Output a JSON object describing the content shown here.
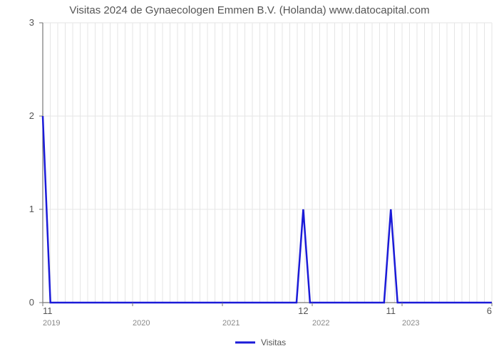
{
  "chart": {
    "type": "line",
    "title": "Visitas 2024 de Gynaecologen Emmen B.V. (Holanda) www.datocapital.com",
    "title_fontsize": 15,
    "title_color": "#555555",
    "background_color": "#ffffff",
    "grid_color": "#e5e5e5",
    "axis_color": "#777777",
    "line_color": "#1b1bd8",
    "line_width": 2.5,
    "y": {
      "min": 0,
      "max": 3,
      "tick_positions": [
        0,
        1,
        2,
        3
      ],
      "tick_labels": [
        "0",
        "1",
        "2",
        "3"
      ]
    },
    "x": {
      "year_labels": [
        {
          "t": 0.0,
          "label": "2019"
        },
        {
          "t": 0.2,
          "label": "2020"
        },
        {
          "t": 0.4,
          "label": "2021"
        },
        {
          "t": 0.6,
          "label": "2022"
        },
        {
          "t": 0.8,
          "label": "2023"
        },
        {
          "t": 1.0,
          "label": ""
        }
      ],
      "month_major_count": 60
    },
    "series": {
      "name": "Visitas",
      "points": [
        {
          "t": 0.0,
          "y": 2.0
        },
        {
          "t": 0.017,
          "y": 0.0
        },
        {
          "t": 0.565,
          "y": 0.0
        },
        {
          "t": 0.58,
          "y": 1.0
        },
        {
          "t": 0.595,
          "y": 0.0
        },
        {
          "t": 0.76,
          "y": 0.0
        },
        {
          "t": 0.775,
          "y": 1.0
        },
        {
          "t": 0.79,
          "y": 0.0
        },
        {
          "t": 0.982,
          "y": 0.0
        },
        {
          "t": 1.0,
          "y": 0.0
        }
      ]
    },
    "data_labels": [
      {
        "t": 0.0,
        "y": 0.0,
        "text": "11",
        "align": "start"
      },
      {
        "t": 0.58,
        "y": 0.0,
        "text": "12",
        "align": "middle"
      },
      {
        "t": 0.775,
        "y": 0.0,
        "text": "11",
        "align": "middle"
      },
      {
        "t": 1.0,
        "y": 0.0,
        "text": "6",
        "align": "end"
      }
    ],
    "legend": {
      "label": "Visitas",
      "swatch_color": "#1b1bd8"
    }
  }
}
